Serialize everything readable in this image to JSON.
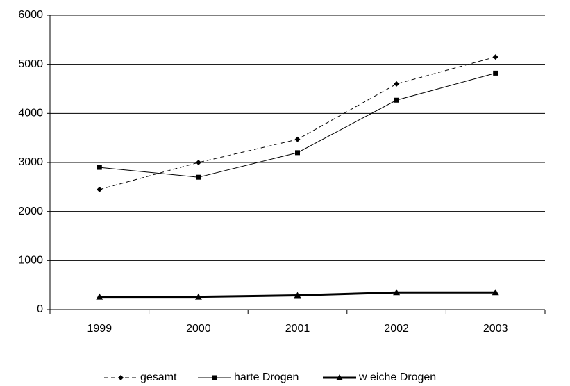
{
  "chart_data": {
    "type": "line",
    "categories": [
      "1999",
      "2000",
      "2001",
      "2002",
      "2003"
    ],
    "series": [
      {
        "name": "gesamt",
        "color": "#000000",
        "dash": true,
        "marker": "diamond",
        "width": 1,
        "values": [
          2450,
          3000,
          3470,
          4600,
          5150
        ]
      },
      {
        "name": "harte Drogen",
        "color": "#000000",
        "dash": false,
        "marker": "square",
        "width": 1,
        "values": [
          2900,
          2700,
          3200,
          4270,
          4820
        ]
      },
      {
        "name": "w eiche Drogen",
        "color": "#000000",
        "dash": false,
        "marker": "triangle",
        "width": 3,
        "values": [
          260,
          260,
          290,
          350,
          350
        ]
      }
    ],
    "ylim": [
      0,
      6000
    ],
    "yticks": [
      0,
      1000,
      2000,
      3000,
      4000,
      5000,
      6000
    ],
    "grid": true,
    "legend": "bottom"
  }
}
